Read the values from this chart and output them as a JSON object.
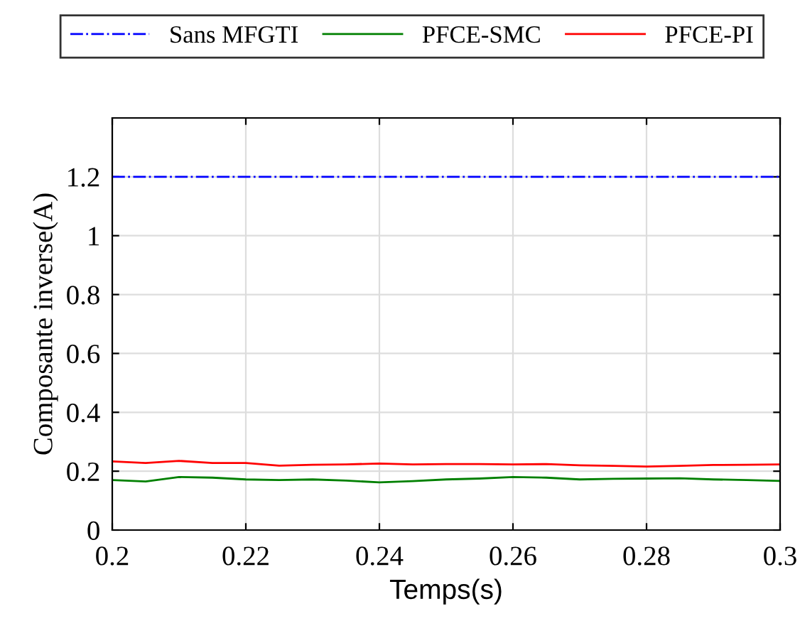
{
  "chart_data": {
    "type": "line",
    "xlabel": "Temps(s)",
    "ylabel": "Composante inverse(A)",
    "x": [
      0.2,
      0.205,
      0.21,
      0.215,
      0.22,
      0.225,
      0.23,
      0.235,
      0.24,
      0.245,
      0.25,
      0.255,
      0.26,
      0.265,
      0.27,
      0.275,
      0.28,
      0.285,
      0.29,
      0.295,
      0.3
    ],
    "series": [
      {
        "name": "Sans MFGTI",
        "color": "#0000ff",
        "line_style": "dashdot",
        "values": [
          1.2,
          1.2,
          1.2,
          1.2,
          1.2,
          1.2,
          1.2,
          1.2,
          1.2,
          1.2,
          1.2,
          1.2,
          1.2,
          1.2,
          1.2,
          1.2,
          1.2,
          1.2,
          1.2,
          1.2,
          1.2
        ]
      },
      {
        "name": "PFCE-SMC",
        "color": "#008000",
        "values": [
          0.17,
          0.165,
          0.18,
          0.178,
          0.172,
          0.17,
          0.172,
          0.168,
          0.162,
          0.166,
          0.172,
          0.175,
          0.18,
          0.178,
          0.172,
          0.174,
          0.175,
          0.176,
          0.172,
          0.17,
          0.167
        ]
      },
      {
        "name": "PFCE-PI",
        "color": "#ff0000",
        "values": [
          0.233,
          0.228,
          0.235,
          0.228,
          0.228,
          0.219,
          0.222,
          0.223,
          0.226,
          0.223,
          0.224,
          0.224,
          0.223,
          0.224,
          0.22,
          0.218,
          0.216,
          0.218,
          0.221,
          0.222,
          0.223
        ]
      }
    ],
    "xlim": [
      0.2,
      0.3
    ],
    "xticks": [
      0.2,
      0.22,
      0.24,
      0.26,
      0.28,
      0.3
    ],
    "ylim": [
      0,
      1.4
    ],
    "yticks": [
      0,
      0.2,
      0.4,
      0.6,
      0.8,
      1,
      1.2
    ],
    "grid": true,
    "legend": "top"
  }
}
